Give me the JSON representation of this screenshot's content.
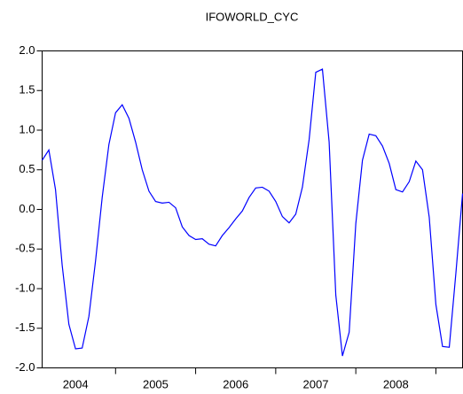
{
  "chart_data": {
    "type": "line",
    "title": "IFOWORLD_CYC",
    "x": [
      2004.083,
      2004.167,
      2004.25,
      2004.333,
      2004.417,
      2004.5,
      2004.583,
      2004.667,
      2004.75,
      2004.833,
      2004.917,
      2005,
      2005.083,
      2005.167,
      2005.25,
      2005.333,
      2005.417,
      2005.5,
      2005.583,
      2005.667,
      2005.75,
      2005.833,
      2005.917,
      2006,
      2006.083,
      2006.167,
      2006.25,
      2006.333,
      2006.417,
      2006.5,
      2006.583,
      2006.667,
      2006.75,
      2006.833,
      2006.917,
      2007,
      2007.083,
      2007.167,
      2007.25,
      2007.333,
      2007.417,
      2007.5,
      2007.583,
      2007.667,
      2007.75,
      2007.833,
      2007.917,
      2008,
      2008.083,
      2008.167,
      2008.25,
      2008.333,
      2008.417,
      2008.5,
      2008.583,
      2008.667,
      2008.75,
      2008.833,
      2008.917,
      2009,
      2009.083,
      2009.167,
      2009.25,
      2009.333
    ],
    "series": [
      {
        "color": "#0000ff",
        "values": [
          0.62,
          0.75,
          0.25,
          -0.7,
          -1.45,
          -1.76,
          -1.75,
          -1.35,
          -0.65,
          0.15,
          0.82,
          1.22,
          1.32,
          1.15,
          0.85,
          0.5,
          0.23,
          0.1,
          0.08,
          0.09,
          0.02,
          -0.22,
          -0.33,
          -0.38,
          -0.37,
          -0.44,
          -0.46,
          -0.33,
          -0.23,
          -0.12,
          -0.02,
          0.15,
          0.27,
          0.28,
          0.23,
          0.1,
          -0.09,
          -0.17,
          -0.06,
          0.28,
          0.88,
          1.73,
          1.77,
          0.85,
          -1.08,
          -1.85,
          -1.55,
          -0.18,
          0.62,
          0.95,
          0.93,
          0.8,
          0.58,
          0.25,
          0.22,
          0.35,
          0.61,
          0.5,
          -0.1,
          -1.2,
          -1.73,
          -1.74,
          -0.8,
          0.2
        ]
      }
    ],
    "xlim": [
      2004.083,
      2009.333
    ],
    "xticks": [
      {
        "value": 2004.5,
        "label": "2004"
      },
      {
        "value": 2005.5,
        "label": "2005"
      },
      {
        "value": 2006.5,
        "label": "2006"
      },
      {
        "value": 2007.5,
        "label": "2007"
      },
      {
        "value": 2008.5,
        "label": "2008"
      }
    ],
    "ylim": [
      -2,
      2
    ],
    "yticks": [
      {
        "value": -2,
        "label": "-2.0"
      },
      -1.5,
      {
        "value": -1,
        "label": "-1.0"
      },
      -0.5,
      {
        "value": 0,
        "label": "0.0"
      },
      0.5,
      {
        "value": 1,
        "label": "1.0"
      },
      1.5,
      {
        "value": 2,
        "label": "2.0"
      }
    ],
    "grid": false
  }
}
